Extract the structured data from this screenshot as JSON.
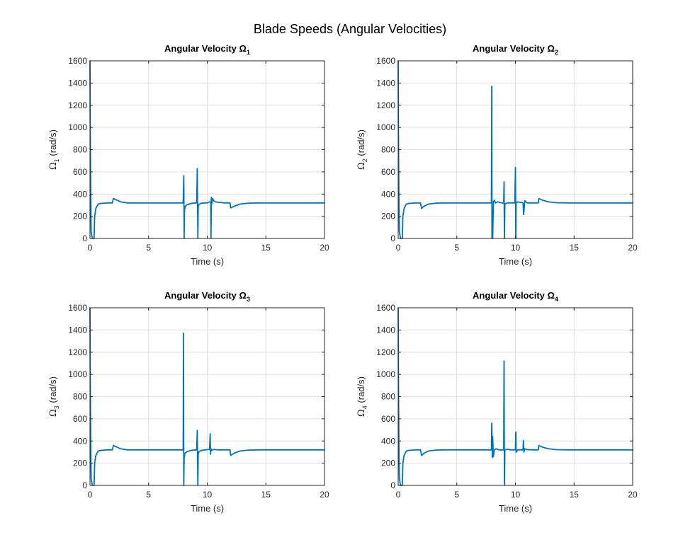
{
  "figure": {
    "title": "Blade Speeds (Angular Velocities)",
    "line_color": "#0072BD"
  },
  "chart_data": [
    {
      "type": "line",
      "title": "Angular Velocity Ω",
      "title_subscript": "1",
      "ylabel": "Ω",
      "ylabel_subscript": "1",
      "ylabel_unit": " (rad/s)",
      "xlabel": "Time (s)",
      "xlim": [
        0,
        20
      ],
      "ylim": [
        0,
        1600
      ],
      "xticks": [
        0,
        5,
        10,
        15,
        20
      ],
      "yticks": [
        0,
        200,
        400,
        600,
        800,
        1000,
        1200,
        1400,
        1600
      ],
      "grid": true,
      "series": [
        {
          "x": [
            0,
            0.02,
            0.06,
            0.1,
            0.2,
            0.3,
            0.35,
            0.4,
            0.5,
            0.7,
            0.9,
            1.2,
            1.5,
            1.9,
            2.0,
            2.2,
            2.6,
            3.2,
            4.0,
            5.0,
            7.0,
            7.95,
            8.0,
            8.03,
            8.06,
            8.12,
            8.3,
            8.6,
            9.0,
            9.1,
            9.15,
            9.2,
            9.23,
            9.26,
            9.35,
            9.5,
            9.8,
            10.0,
            10.2,
            10.3,
            10.32,
            10.35,
            10.38,
            10.45,
            10.55,
            10.7,
            11.0,
            11.5,
            11.95,
            12.0,
            12.3,
            12.8,
            13.5,
            14.5,
            15.5,
            17.0,
            18.5,
            20.0
          ],
          "y": [
            1600,
            1000,
            400,
            60,
            0,
            0,
            0,
            200,
            270,
            310,
            315,
            318,
            320,
            320,
            360,
            350,
            330,
            320,
            320,
            320,
            320,
            320,
            565,
            0,
            250,
            290,
            305,
            315,
            320,
            320,
            630,
            0,
            280,
            300,
            310,
            318,
            320,
            320,
            330,
            325,
            0,
            370,
            310,
            360,
            340,
            330,
            325,
            320,
            320,
            275,
            290,
            310,
            318,
            320,
            320,
            320,
            320,
            320
          ]
        }
      ]
    },
    {
      "type": "line",
      "title": "Angular Velocity Ω",
      "title_subscript": "2",
      "ylabel": "Ω",
      "ylabel_subscript": "2",
      "ylabel_unit": " (rad/s)",
      "xlabel": "Time (s)",
      "xlim": [
        0,
        20
      ],
      "ylim": [
        0,
        1600
      ],
      "xticks": [
        0,
        5,
        10,
        15,
        20
      ],
      "yticks": [
        0,
        200,
        400,
        600,
        800,
        1000,
        1200,
        1400,
        1600
      ],
      "grid": true,
      "series": [
        {
          "x": [
            0,
            0.02,
            0.06,
            0.1,
            0.2,
            0.3,
            0.35,
            0.4,
            0.5,
            0.7,
            0.9,
            1.2,
            1.5,
            1.9,
            2.0,
            2.2,
            2.6,
            3.2,
            4.0,
            5.0,
            7.0,
            7.95,
            7.98,
            8.0,
            8.03,
            8.06,
            8.12,
            8.2,
            8.3,
            8.5,
            8.8,
            9.0,
            9.03,
            9.06,
            9.1,
            9.3,
            9.6,
            9.95,
            10.0,
            10.03,
            10.06,
            10.15,
            10.4,
            10.65,
            10.7,
            10.8,
            11.0,
            11.5,
            11.95,
            12.0,
            12.3,
            12.8,
            13.5,
            14.5,
            15.5,
            17.0,
            18.5,
            20.0
          ],
          "y": [
            1600,
            1000,
            400,
            60,
            0,
            0,
            0,
            200,
            270,
            310,
            315,
            318,
            320,
            320,
            270,
            290,
            310,
            318,
            320,
            320,
            320,
            320,
            1370,
            0,
            0,
            0,
            330,
            345,
            320,
            330,
            320,
            320,
            510,
            0,
            310,
            320,
            320,
            320,
            640,
            0,
            320,
            330,
            325,
            320,
            215,
            340,
            320,
            320,
            320,
            360,
            345,
            330,
            322,
            320,
            320,
            320,
            320,
            320
          ]
        }
      ]
    },
    {
      "type": "line",
      "title": "Angular Velocity Ω",
      "title_subscript": "3",
      "ylabel": "Ω",
      "ylabel_subscript": "3",
      "ylabel_unit": " (rad/s)",
      "xlabel": "Time (s)",
      "xlim": [
        0,
        20
      ],
      "ylim": [
        0,
        1600
      ],
      "xticks": [
        0,
        5,
        10,
        15,
        20
      ],
      "yticks": [
        0,
        200,
        400,
        600,
        800,
        1000,
        1200,
        1400,
        1600
      ],
      "grid": true,
      "series": [
        {
          "x": [
            0,
            0.02,
            0.06,
            0.1,
            0.2,
            0.3,
            0.35,
            0.4,
            0.5,
            0.7,
            0.9,
            1.2,
            1.5,
            1.9,
            2.0,
            2.2,
            2.6,
            3.2,
            4.0,
            5.0,
            7.0,
            7.95,
            7.98,
            8.0,
            8.03,
            8.1,
            8.3,
            8.6,
            9.0,
            9.1,
            9.15,
            9.2,
            9.23,
            9.3,
            9.5,
            9.8,
            10.0,
            10.2,
            10.25,
            10.28,
            10.32,
            10.4,
            10.55,
            10.7,
            11.0,
            11.5,
            11.95,
            12.0,
            12.3,
            12.8,
            13.5,
            14.5,
            15.5,
            17.0,
            18.5,
            20.0
          ],
          "y": [
            1600,
            1000,
            400,
            60,
            0,
            0,
            0,
            200,
            270,
            310,
            315,
            318,
            320,
            320,
            360,
            350,
            330,
            320,
            320,
            320,
            320,
            320,
            1370,
            0,
            250,
            290,
            305,
            315,
            320,
            320,
            495,
            0,
            280,
            305,
            315,
            320,
            322,
            325,
            465,
            280,
            330,
            315,
            325,
            322,
            320,
            320,
            320,
            270,
            290,
            310,
            318,
            320,
            320,
            320,
            320,
            320
          ]
        }
      ]
    },
    {
      "type": "line",
      "title": "Angular Velocity Ω",
      "title_subscript": "4",
      "ylabel": "Ω",
      "ylabel_subscript": "4",
      "ylabel_unit": " (rad/s)",
      "xlabel": "Time (s)",
      "xlim": [
        0,
        20
      ],
      "ylim": [
        0,
        1600
      ],
      "xticks": [
        0,
        5,
        10,
        15,
        20
      ],
      "yticks": [
        0,
        200,
        400,
        600,
        800,
        1000,
        1200,
        1400,
        1600
      ],
      "grid": true,
      "series": [
        {
          "x": [
            0,
            0.02,
            0.06,
            0.1,
            0.2,
            0.3,
            0.35,
            0.4,
            0.5,
            0.7,
            0.9,
            1.2,
            1.5,
            1.9,
            2.0,
            2.2,
            2.6,
            3.2,
            4.0,
            5.0,
            7.0,
            7.95,
            7.98,
            8.03,
            8.06,
            8.12,
            8.2,
            8.35,
            8.6,
            8.95,
            9.0,
            9.03,
            9.06,
            9.1,
            9.3,
            9.6,
            9.95,
            10.0,
            10.03,
            10.06,
            10.2,
            10.5,
            10.65,
            10.68,
            10.72,
            10.8,
            11.0,
            11.5,
            11.95,
            12.0,
            12.3,
            12.8,
            13.5,
            14.5,
            15.5,
            17.0,
            18.5,
            20.0
          ],
          "y": [
            1600,
            1000,
            400,
            60,
            0,
            0,
            0,
            200,
            270,
            310,
            315,
            318,
            320,
            320,
            270,
            290,
            310,
            318,
            320,
            320,
            320,
            320,
            560,
            250,
            440,
            260,
            320,
            330,
            320,
            320,
            320,
            1120,
            0,
            320,
            325,
            320,
            320,
            320,
            480,
            300,
            320,
            320,
            320,
            405,
            300,
            330,
            322,
            320,
            320,
            360,
            345,
            330,
            322,
            320,
            320,
            320,
            320,
            320
          ]
        }
      ]
    }
  ]
}
